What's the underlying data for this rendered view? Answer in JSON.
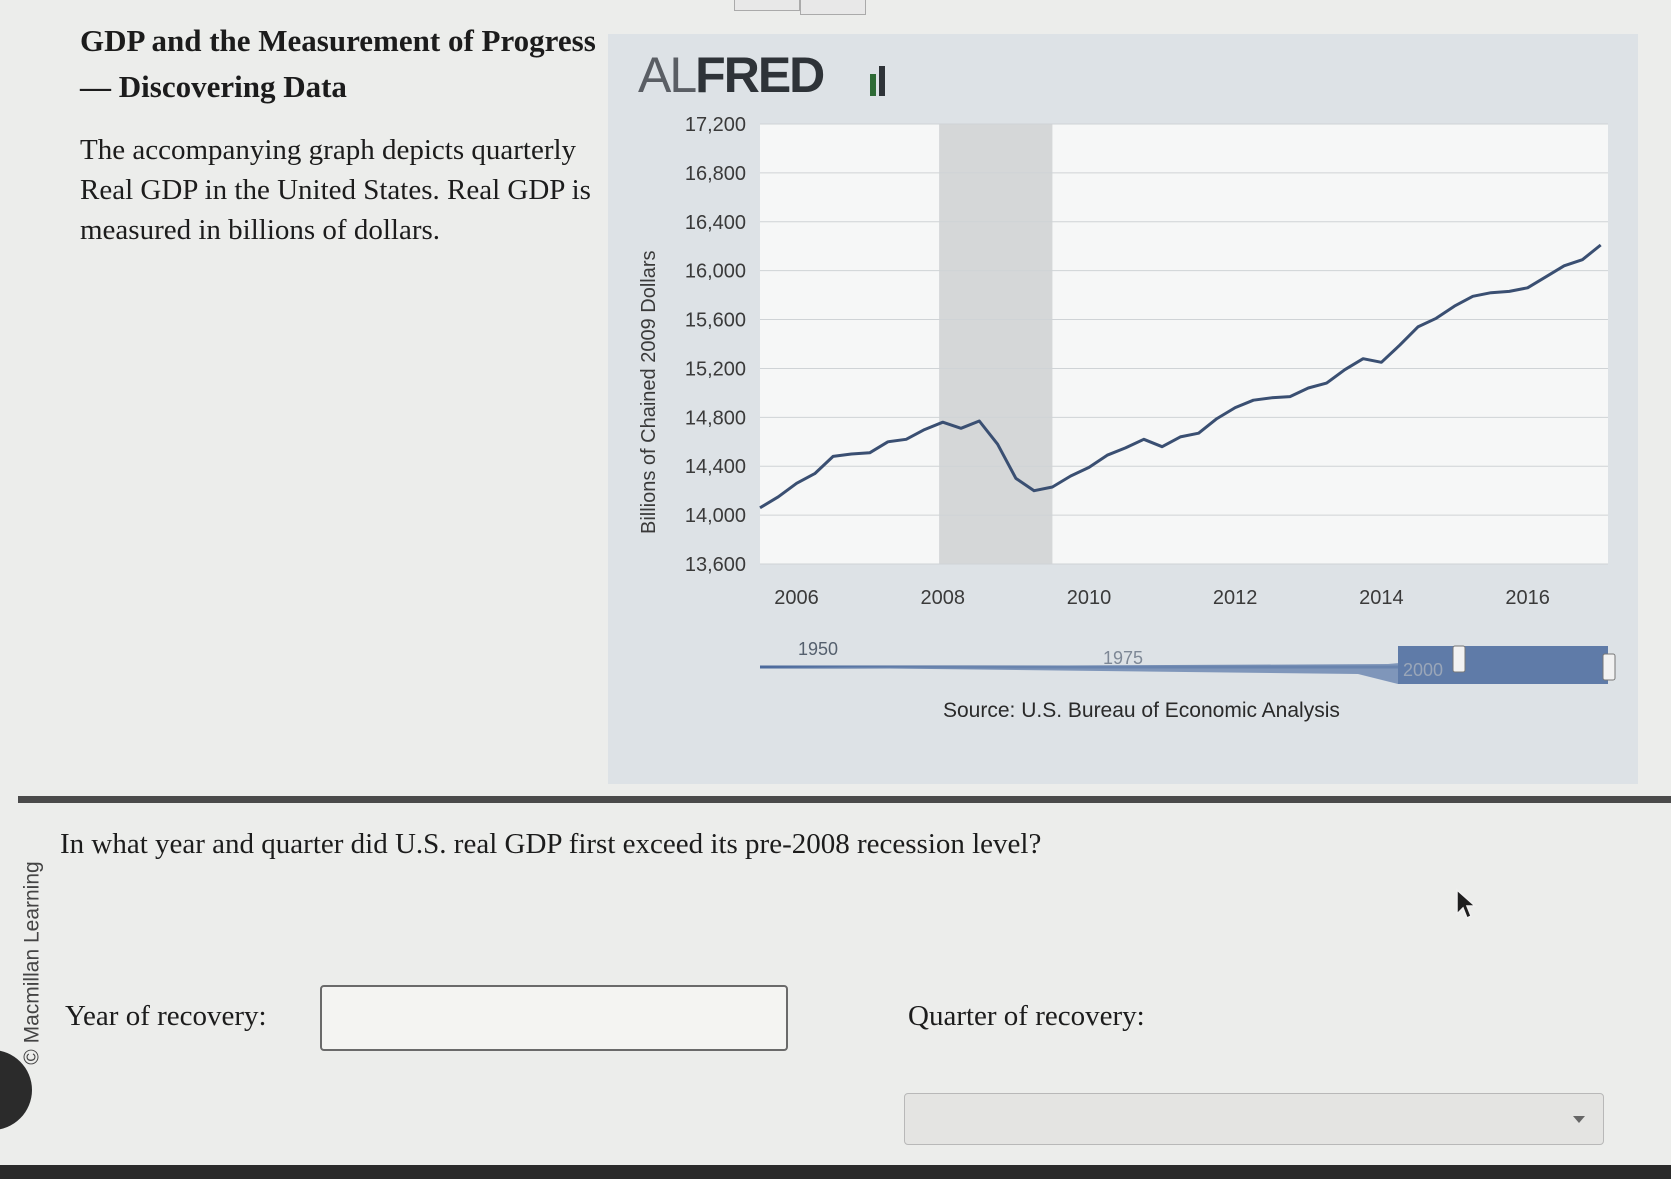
{
  "header": {
    "title": "GDP and the Measurement of Progress — Discovering Data",
    "description": "The accompanying graph depicts quarterly Real GDP in the United States. Real GDP is measured in billions of dollars."
  },
  "chart": {
    "logo_light": "AL",
    "logo_bold": "FRED",
    "source": "Source: U.S. Bureau of Economic Analysis",
    "slider_labels": [
      "1950",
      "1975",
      "2000"
    ]
  },
  "chart_data": {
    "type": "line",
    "title": "",
    "xlabel": "",
    "ylabel": "Billions of Chained 2009 Dollars",
    "ylim": [
      13600,
      17200
    ],
    "xlim": [
      2005.5,
      2017.1
    ],
    "yticks": [
      17200,
      16800,
      16400,
      16000,
      15600,
      15200,
      14800,
      14400,
      14000,
      13600
    ],
    "ytick_labels": [
      "17,200",
      "16,800",
      "16,400",
      "16,000",
      "15,600",
      "15,200",
      "14,800",
      "14,400",
      "14,000",
      "13,600"
    ],
    "xticks": [
      2006,
      2008,
      2010,
      2012,
      2014,
      2016
    ],
    "xtick_labels": [
      "2006",
      "2008",
      "2010",
      "2012",
      "2014",
      "2016"
    ],
    "grid": true,
    "shaded_recession": [
      2007.95,
      2009.5
    ],
    "series": [
      {
        "x": [
          2005.5,
          2005.75,
          2006.0,
          2006.25,
          2006.5,
          2006.75,
          2007.0,
          2007.25,
          2007.5,
          2007.75,
          2008.0,
          2008.25,
          2008.5,
          2008.75,
          2009.0,
          2009.25,
          2009.5,
          2009.75,
          2010.0,
          2010.25,
          2010.5,
          2010.75,
          2011.0,
          2011.25,
          2011.5,
          2011.75,
          2012.0,
          2012.25,
          2012.5,
          2012.75,
          2013.0,
          2013.25,
          2013.5,
          2013.75,
          2014.0,
          2014.25,
          2014.5,
          2014.75,
          2015.0,
          2015.25,
          2015.5,
          2015.75,
          2016.0,
          2016.25,
          2016.5,
          2016.75,
          2017.0
        ],
        "values": [
          14060,
          14150,
          14260,
          14340,
          14480,
          14500,
          14510,
          14600,
          14620,
          14700,
          14760,
          14710,
          14770,
          14580,
          14300,
          14200,
          14230,
          14320,
          14390,
          14490,
          14550,
          14620,
          14560,
          14640,
          14670,
          14790,
          14880,
          14940,
          14960,
          14970,
          15040,
          15080,
          15190,
          15280,
          15250,
          15390,
          15540,
          15610,
          15710,
          15790,
          15820,
          15830,
          15860,
          15950,
          16040,
          16090,
          16210
        ]
      }
    ]
  },
  "question": {
    "prompt": "In what year and quarter did U.S. real GDP first exceed its pre-2008 recession level?",
    "year_label": "Year of recovery:",
    "quarter_label": "Quarter of recovery:",
    "year_value": "",
    "quarter_value": ""
  },
  "footer": {
    "copyright": "© Macmillan Learning"
  },
  "colors": {
    "line": "#3a4f72",
    "panel": "#dde2e6",
    "plot": "#f6f7f7",
    "recession": "#d5d7d8",
    "slider": "#6f88b2"
  }
}
